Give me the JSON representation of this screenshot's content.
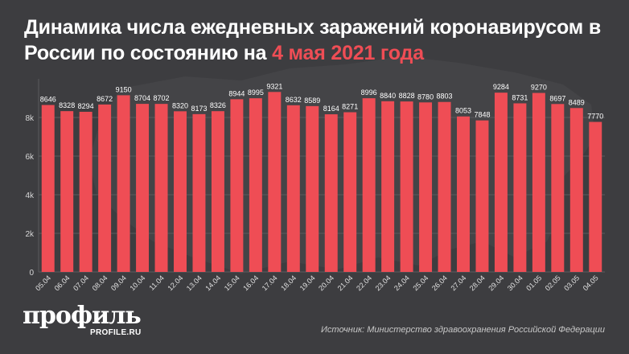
{
  "title": {
    "text_main": "Динамика числа ежедневных заражений коронавирусом в России по состоянию на ",
    "text_highlight": "4 мая 2021 года"
  },
  "brand": {
    "logo_text": "профиль",
    "logo_subtext": "PROFILE.RU"
  },
  "source": "Источник: Министерство здравоохранения Российской Федерации",
  "colors": {
    "background": "#3d3d40",
    "bar": "#ef4d55",
    "highlight": "#ef4d55",
    "grid": "#5a5a5e",
    "text": "#ffffff"
  },
  "chart_data": {
    "type": "bar",
    "categories": [
      "05.04",
      "06.04",
      "07.04",
      "08.04",
      "09.04",
      "10.04",
      "11.04",
      "12.04",
      "13.04",
      "14.04",
      "15.04",
      "16.04",
      "17.04",
      "18.04",
      "19.04",
      "20.04",
      "21.04",
      "22.04",
      "23.04",
      "24.04",
      "25.04",
      "26.04",
      "27.04",
      "28.04",
      "29.04",
      "30.04",
      "01.05",
      "02.05",
      "03.05",
      "04.05"
    ],
    "values": [
      8646,
      8328,
      8294,
      8672,
      9150,
      8704,
      8702,
      8320,
      8173,
      8326,
      8944,
      8995,
      9321,
      8632,
      8589,
      8164,
      8271,
      8996,
      8840,
      8828,
      8780,
      8803,
      8053,
      7848,
      9284,
      8731,
      9270,
      8697,
      8489,
      7770
    ],
    "y_ticks": [
      0,
      2000,
      4000,
      6000,
      8000
    ],
    "y_tick_labels": [
      "0",
      "2k",
      "4k",
      "6k",
      "8k"
    ],
    "ylim": [
      0,
      10000
    ],
    "grid": true,
    "legend": "none"
  }
}
